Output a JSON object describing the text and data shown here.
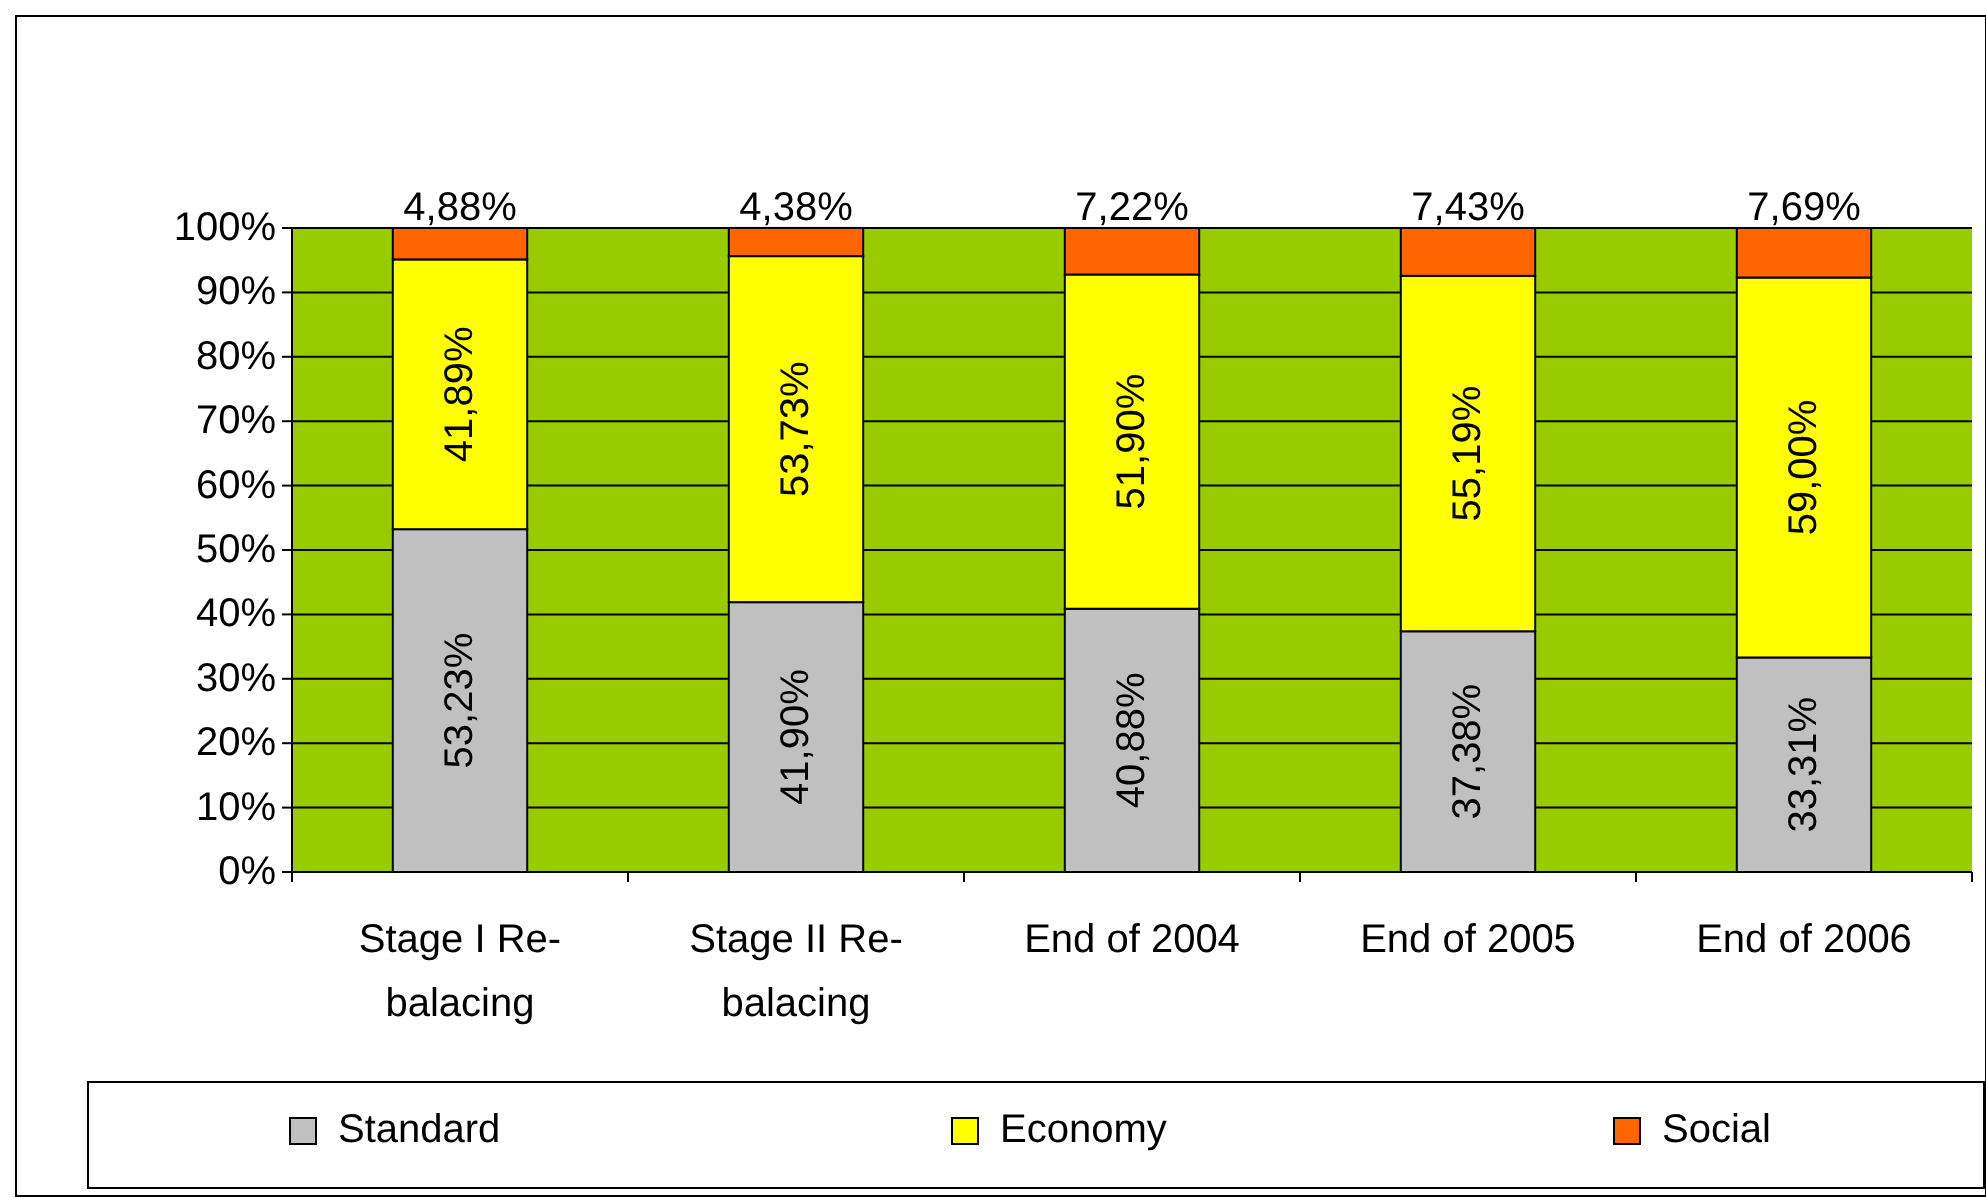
{
  "chart_data": {
    "type": "bar",
    "stacked": true,
    "categories": [
      "Stage I Re-balacing",
      "Stage II Re-balacing",
      "End of 2004",
      "End of 2005",
      "End of 2006"
    ],
    "series": [
      {
        "name": "Standard",
        "color": "#c0c0c0",
        "values": [
          53.23,
          41.9,
          40.88,
          37.38,
          33.31
        ],
        "value_labels": [
          "53,23%",
          "41,90%",
          "40,88%",
          "37,38%",
          "33,31%"
        ]
      },
      {
        "name": "Economy",
        "color": "#ffff00",
        "values": [
          41.89,
          53.73,
          51.9,
          55.19,
          59.0
        ],
        "value_labels": [
          "41,89%",
          "53,73%",
          "51,90%",
          "55,19%",
          "59,00%"
        ]
      },
      {
        "name": "Social",
        "color": "#ff6600",
        "values": [
          4.88,
          4.38,
          7.22,
          7.43,
          7.69
        ],
        "value_labels": [
          "4,88%",
          "4,38%",
          "7,22%",
          "7,43%",
          "7,69%"
        ]
      }
    ],
    "ylim": [
      0,
      100
    ],
    "yticks": [
      {
        "value": 0,
        "label": "0%"
      },
      {
        "value": 10,
        "label": "10%"
      },
      {
        "value": 20,
        "label": "20%"
      },
      {
        "value": 30,
        "label": "30%"
      },
      {
        "value": 40,
        "label": "40%"
      },
      {
        "value": 50,
        "label": "50%"
      },
      {
        "value": 60,
        "label": "60%"
      },
      {
        "value": 70,
        "label": "70%"
      },
      {
        "value": 80,
        "label": "80%"
      },
      {
        "value": 90,
        "label": "90%"
      },
      {
        "value": 100,
        "label": "100%"
      }
    ],
    "grid": "y",
    "legend": "bottom"
  }
}
